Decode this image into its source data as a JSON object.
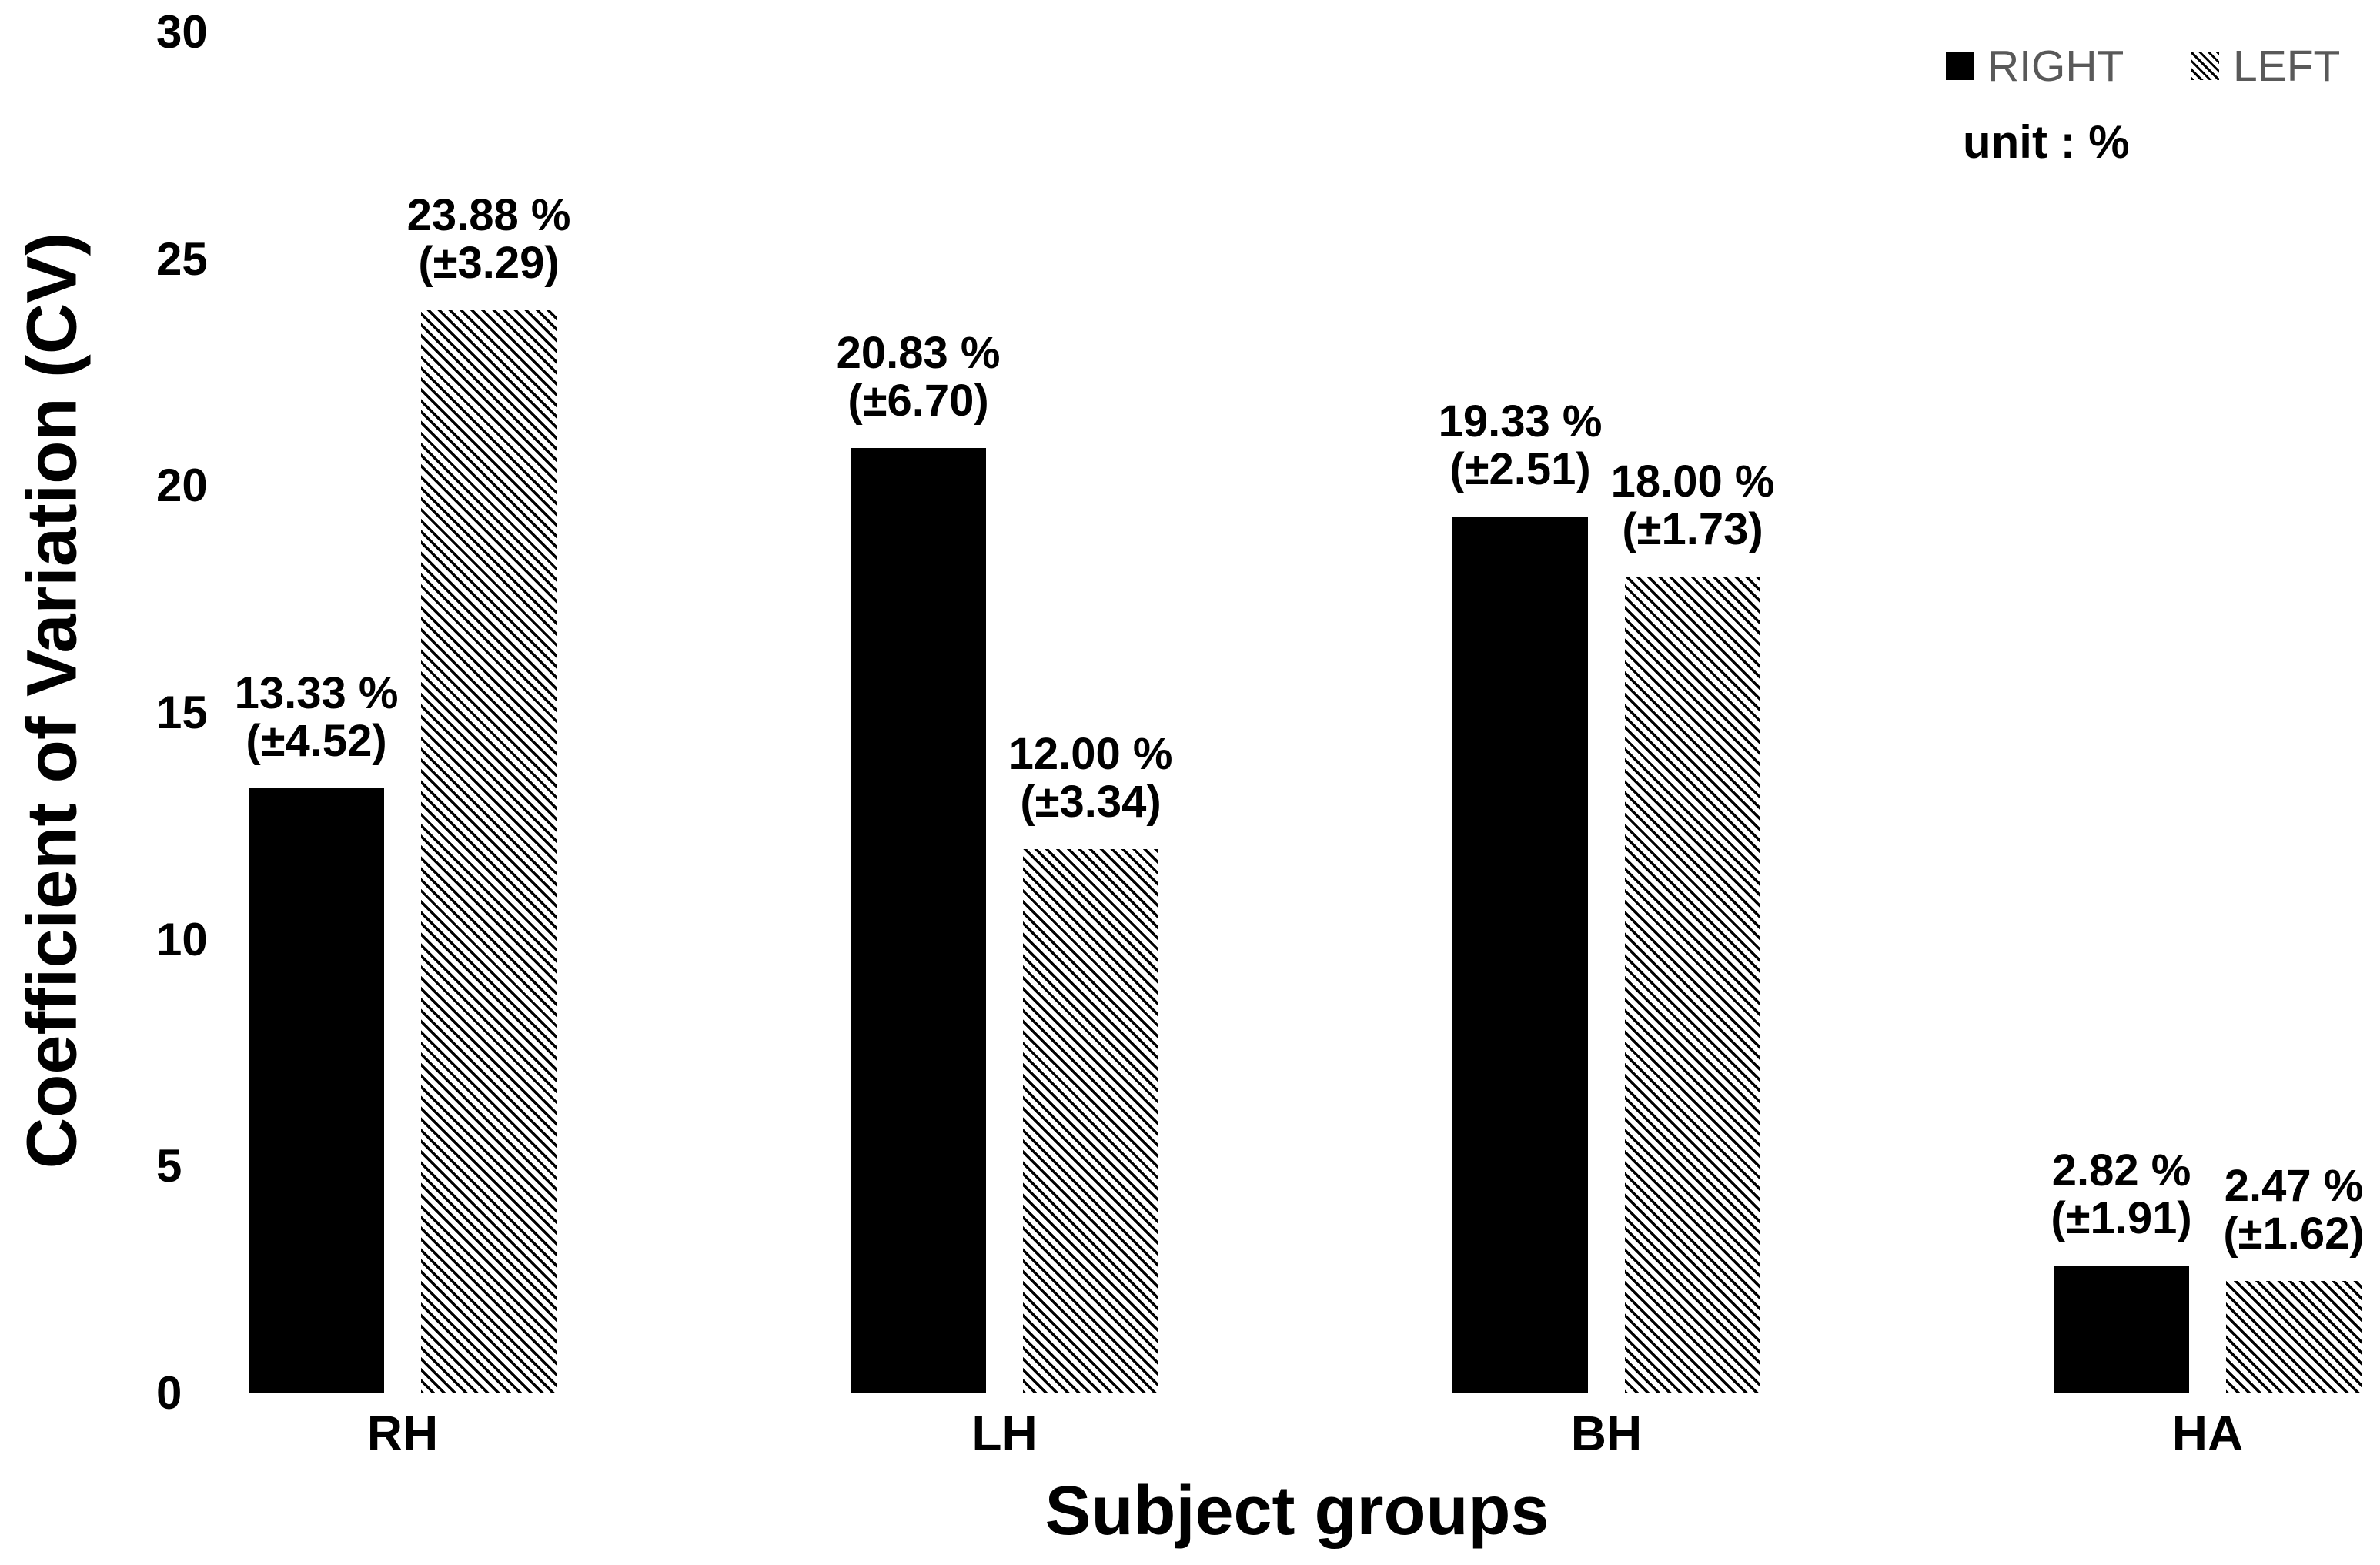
{
  "page": {
    "background": "#ffffff",
    "text_color": "#000000"
  },
  "axes": {
    "y_title": "Coefficient of Variation (CV)",
    "x_title": "Subject groups",
    "y_ticks": [
      "0",
      "5",
      "10",
      "15",
      "20",
      "25",
      "30"
    ],
    "x_ticks": [
      "RH",
      "LH",
      "BH",
      "HA"
    ]
  },
  "legend": {
    "text_color": "#595959",
    "entries": [
      {
        "label": "RIGHT",
        "swatch": "solid-black-square"
      },
      {
        "label": "LEFT",
        "swatch": "diagonal-hatch-square"
      }
    ],
    "unit_note": "unit : %"
  },
  "chart_data": {
    "type": "bar",
    "title": "",
    "xlabel": "Subject groups",
    "ylabel": "Coefficient of Variation (CV)",
    "categories": [
      "RH",
      "LH",
      "BH",
      "HA"
    ],
    "series": [
      {
        "name": "RIGHT",
        "fill": "solid",
        "color": "#000000",
        "values": [
          13.33,
          20.83,
          19.33,
          2.82
        ],
        "sd": [
          4.52,
          6.7,
          2.51,
          1.91
        ],
        "labels": [
          {
            "line1": "13.33 %",
            "line2": "(±4.52)"
          },
          {
            "line1": "20.83 %",
            "line2": "(±6.70)"
          },
          {
            "line1": "19.33 %",
            "line2": "(±2.51)"
          },
          {
            "line1": "2.82 %",
            "line2": "(±1.91)"
          }
        ]
      },
      {
        "name": "LEFT",
        "fill": "hatch",
        "color": "#000000",
        "values": [
          23.88,
          12.0,
          18.0,
          2.47
        ],
        "sd": [
          3.29,
          3.34,
          1.73,
          1.62
        ],
        "labels": [
          {
            "line1": "23.88 %",
            "line2": "(±3.29)"
          },
          {
            "line1": "12.00 %",
            "line2": "(±3.34)"
          },
          {
            "line1": "18.00 %",
            "line2": "(±1.73)"
          },
          {
            "line1": "2.47 %",
            "line2": "(±1.62)"
          }
        ]
      }
    ],
    "ylim": [
      0,
      30
    ],
    "ytick_values": [
      0,
      5,
      10,
      15,
      20,
      25,
      30
    ],
    "unit": "%",
    "grid": false,
    "axis_lines": false,
    "legend_position": "top-right"
  }
}
